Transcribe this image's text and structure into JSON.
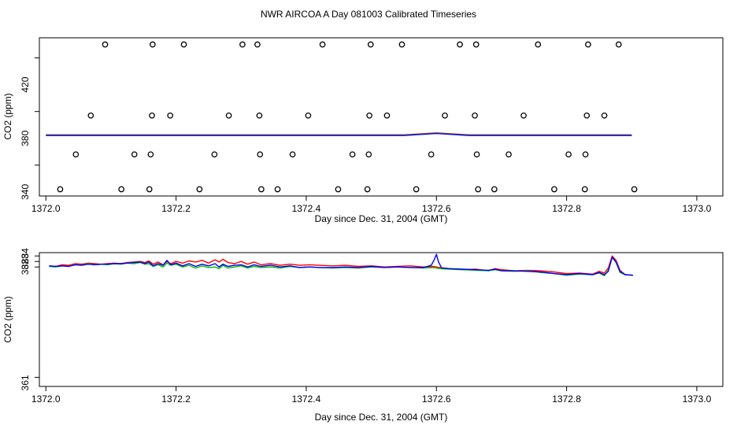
{
  "title": "NWR AIRCOA A  Day 081003  Calibrated Timeseries",
  "chart_data": [
    {
      "type": "scatter",
      "xlabel": "Day since Dec. 31, 2004 (GMT)",
      "ylabel": "CO2 (ppm)",
      "xlim": [
        1371.99,
        1373.04
      ],
      "ylim": [
        337,
        455
      ],
      "xticks": [
        1372.0,
        1372.2,
        1372.4,
        1372.6,
        1372.8,
        1373.0
      ],
      "xtick_labels": [
        "1372.0",
        "1372.2",
        "1372.4",
        "1372.6",
        "1372.8",
        "1373.0"
      ],
      "yticks": [
        340,
        380,
        420
      ],
      "ytick_labels": [
        "340",
        "380",
        "420"
      ],
      "ylabel_ticks": [
        360,
        400,
        440
      ],
      "calibration_points": {
        "marker": "open-circle",
        "x": [
          1372.022,
          1372.046,
          1372.069,
          1372.091,
          1372.116,
          1372.136,
          1372.159,
          1372.161,
          1372.163,
          1372.164,
          1372.191,
          1372.212,
          1372.236,
          1372.259,
          1372.281,
          1372.302,
          1372.325,
          1372.328,
          1372.329,
          1372.331,
          1372.356,
          1372.379,
          1372.403,
          1372.425,
          1372.449,
          1372.471,
          1372.494,
          1372.496,
          1372.497,
          1372.499,
          1372.524,
          1372.547,
          1372.569,
          1372.592,
          1372.613,
          1372.636,
          1372.659,
          1372.661,
          1372.662,
          1372.664,
          1372.689,
          1372.711,
          1372.734,
          1372.756,
          1372.781,
          1372.803,
          1372.828,
          1372.829,
          1372.831,
          1372.833,
          1372.858,
          1372.88,
          1372.904
        ],
        "y": [
          342,
          368,
          397,
          450,
          342,
          368,
          342,
          368,
          397,
          450,
          397,
          450,
          342,
          368,
          397,
          450,
          450,
          397,
          368,
          342,
          342,
          368,
          397,
          450,
          342,
          368,
          342,
          368,
          397,
          450,
          397,
          450,
          342,
          368,
          397,
          450,
          397,
          450,
          368,
          342,
          342,
          368,
          397,
          450,
          342,
          368,
          342,
          368,
          397,
          450,
          397,
          450,
          342
        ]
      },
      "series": [
        {
          "name": "red",
          "color": "#ff0000"
        },
        {
          "name": "green",
          "color": "#00c000"
        },
        {
          "name": "blue",
          "color": "#0000ff"
        }
      ]
    },
    {
      "type": "line",
      "xlabel": "Day since Dec. 31, 2004 (GMT)",
      "ylabel": "CO2 (ppm)",
      "xlim": [
        1371.99,
        1373.04
      ],
      "ylim": [
        360.35,
        384.6
      ],
      "xticks": [
        1372.0,
        1372.2,
        1372.4,
        1372.6,
        1372.8,
        1373.0
      ],
      "xtick_labels": [
        "1372.0",
        "1372.2",
        "1372.4",
        "1372.6",
        "1372.8",
        "1373.0"
      ],
      "yticks": [
        361,
        382,
        383,
        384
      ],
      "ytick_labels": [
        "361",
        "382",
        "383",
        "384"
      ],
      "ylabel_ticks": [
        362,
        382,
        383,
        384
      ],
      "series": [
        {
          "name": "red",
          "color": "#ff0000",
          "x": [
            1372.005,
            1372.015,
            1372.025,
            1372.035,
            1372.045,
            1372.055,
            1372.065,
            1372.075,
            1372.085,
            1372.095,
            1372.105,
            1372.115,
            1372.125,
            1372.135,
            1372.145,
            1372.152,
            1372.158,
            1372.165,
            1372.172,
            1372.18,
            1372.186,
            1372.192,
            1372.2,
            1372.21,
            1372.22,
            1372.23,
            1372.24,
            1372.25,
            1372.26,
            1372.266,
            1372.272,
            1372.28,
            1372.29,
            1372.3,
            1372.31,
            1372.32,
            1372.33,
            1372.345,
            1372.36,
            1372.375,
            1372.39,
            1372.405,
            1372.42,
            1372.44,
            1372.46,
            1372.48,
            1372.5,
            1372.52,
            1372.54,
            1372.56,
            1372.58,
            1372.595,
            1372.6,
            1372.605,
            1372.62,
            1372.64,
            1372.66,
            1372.68,
            1372.69,
            1372.7,
            1372.72,
            1372.74,
            1372.76,
            1372.78,
            1372.8,
            1372.82,
            1372.84,
            1372.85,
            1372.858,
            1372.864,
            1372.87,
            1372.876,
            1372.882,
            1372.89,
            1372.902
          ],
          "y": [
            382.2,
            382.1,
            382.4,
            382.3,
            382.6,
            382.5,
            382.7,
            382.6,
            382.5,
            382.6,
            382.7,
            382.6,
            382.8,
            382.9,
            383.0,
            382.8,
            383.1,
            382.5,
            382.9,
            382.4,
            383.0,
            382.6,
            383.0,
            382.7,
            383.1,
            382.9,
            383.2,
            382.7,
            383.3,
            382.9,
            383.4,
            382.8,
            382.6,
            383.0,
            382.5,
            382.9,
            382.4,
            382.6,
            382.3,
            382.5,
            382.3,
            382.4,
            382.3,
            382.2,
            382.3,
            382.1,
            382.2,
            382.0,
            382.1,
            382.2,
            382.0,
            382.1,
            382.0,
            381.9,
            381.7,
            381.5,
            381.6,
            381.3,
            381.7,
            381.5,
            381.3,
            381.4,
            381.3,
            381.1,
            380.8,
            380.9,
            380.7,
            381.2,
            380.9,
            381.8,
            384.0,
            383.2,
            381.4,
            380.6,
            380.5
          ]
        },
        {
          "name": "green",
          "color": "#00c000",
          "x": [
            1372.005,
            1372.015,
            1372.025,
            1372.035,
            1372.045,
            1372.055,
            1372.065,
            1372.075,
            1372.085,
            1372.095,
            1372.105,
            1372.115,
            1372.125,
            1372.135,
            1372.145,
            1372.152,
            1372.158,
            1372.165,
            1372.172,
            1372.18,
            1372.186,
            1372.192,
            1372.2,
            1372.21,
            1372.22,
            1372.23,
            1372.24,
            1372.25,
            1372.26,
            1372.266,
            1372.272,
            1372.28,
            1372.29,
            1372.3,
            1372.31,
            1372.32,
            1372.33,
            1372.345,
            1372.36,
            1372.375,
            1372.39,
            1372.405,
            1372.42,
            1372.44,
            1372.46,
            1372.48,
            1372.5,
            1372.52,
            1372.54,
            1372.56,
            1372.58,
            1372.595,
            1372.6,
            1372.605,
            1372.62,
            1372.64,
            1372.66,
            1372.68,
            1372.69,
            1372.7,
            1372.72,
            1372.74,
            1372.76,
            1372.78,
            1372.8,
            1372.82,
            1372.84,
            1372.85,
            1372.858,
            1372.864,
            1372.87,
            1372.876,
            1372.882,
            1372.89,
            1372.902
          ],
          "y": [
            382.1,
            382.0,
            382.2,
            382.1,
            382.4,
            382.3,
            382.6,
            382.4,
            382.5,
            382.4,
            382.6,
            382.5,
            382.7,
            382.6,
            382.8,
            382.5,
            382.6,
            382.1,
            382.4,
            382.0,
            382.7,
            382.3,
            382.5,
            382.0,
            382.3,
            381.8,
            382.2,
            381.9,
            382.0,
            381.7,
            382.3,
            381.8,
            382.0,
            382.2,
            381.8,
            382.1,
            381.9,
            382.0,
            381.8,
            382.1,
            381.9,
            382.0,
            381.9,
            381.8,
            381.9,
            381.8,
            382.0,
            381.9,
            382.0,
            381.9,
            381.8,
            381.9,
            381.8,
            381.7,
            381.6,
            381.5,
            381.4,
            381.3,
            381.5,
            381.3,
            381.2,
            381.3,
            381.0,
            380.8,
            380.5,
            380.7,
            380.6,
            380.9,
            380.4,
            381.4,
            383.7,
            382.8,
            381.0,
            380.6,
            380.5
          ]
        },
        {
          "name": "blue",
          "color": "#0000ff",
          "x": [
            1372.005,
            1372.015,
            1372.025,
            1372.035,
            1372.045,
            1372.055,
            1372.065,
            1372.075,
            1372.085,
            1372.095,
            1372.105,
            1372.115,
            1372.125,
            1372.135,
            1372.145,
            1372.152,
            1372.158,
            1372.165,
            1372.172,
            1372.18,
            1372.186,
            1372.192,
            1372.2,
            1372.21,
            1372.22,
            1372.23,
            1372.24,
            1372.25,
            1372.26,
            1372.266,
            1372.272,
            1372.28,
            1372.29,
            1372.3,
            1372.31,
            1372.32,
            1372.33,
            1372.345,
            1372.36,
            1372.375,
            1372.39,
            1372.405,
            1372.42,
            1372.44,
            1372.46,
            1372.48,
            1372.5,
            1372.52,
            1372.54,
            1372.56,
            1372.58,
            1372.592,
            1372.597,
            1372.6,
            1372.603,
            1372.608,
            1372.62,
            1372.64,
            1372.66,
            1372.68,
            1372.69,
            1372.7,
            1372.72,
            1372.74,
            1372.76,
            1372.78,
            1372.8,
            1372.82,
            1372.84,
            1372.85,
            1372.858,
            1372.864,
            1372.87,
            1372.876,
            1372.882,
            1372.89,
            1372.902
          ],
          "y": [
            382.2,
            382.1,
            382.2,
            382.1,
            382.4,
            382.3,
            382.5,
            382.4,
            382.5,
            382.5,
            382.6,
            382.6,
            382.7,
            382.8,
            382.9,
            382.6,
            382.9,
            382.2,
            382.6,
            382.3,
            383.2,
            382.4,
            382.7,
            382.2,
            382.6,
            382.1,
            382.5,
            382.2,
            382.6,
            382.0,
            382.5,
            382.1,
            382.3,
            382.4,
            382.0,
            382.4,
            382.1,
            382.3,
            382.0,
            382.2,
            381.9,
            382.0,
            381.9,
            381.9,
            382.0,
            381.9,
            382.1,
            381.9,
            382.0,
            381.9,
            381.9,
            382.3,
            383.4,
            384.3,
            383.0,
            381.8,
            381.7,
            381.6,
            381.5,
            381.4,
            381.6,
            381.3,
            381.3,
            381.2,
            381.1,
            380.8,
            380.6,
            380.8,
            380.6,
            381.0,
            380.6,
            381.2,
            383.8,
            382.9,
            381.2,
            380.6,
            380.5
          ]
        }
      ]
    }
  ]
}
